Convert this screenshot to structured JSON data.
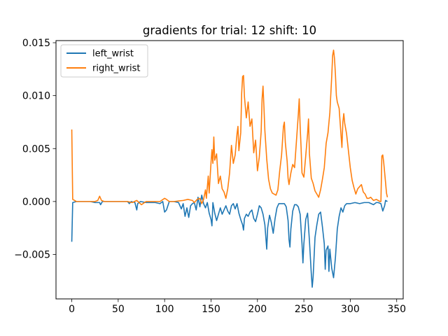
{
  "chart_data": {
    "type": "line",
    "title": "gradients for trial: 12 shift: 10",
    "xlabel": "",
    "ylabel": "",
    "xlim": [
      -17,
      357
    ],
    "ylim": [
      -0.0092,
      0.0152
    ],
    "xticks": [
      0,
      50,
      100,
      150,
      200,
      250,
      300,
      350
    ],
    "yticks": [
      -0.005,
      0.0,
      0.005,
      0.01,
      0.015
    ],
    "ytick_labels": [
      "−0.005",
      "0.000",
      "0.005",
      "0.010",
      "0.015"
    ],
    "grid": false,
    "legend_position": "top-left",
    "series": [
      {
        "name": "left_wrist",
        "color": "#1f77b4",
        "points": [
          [
            0,
            -0.0038
          ],
          [
            1,
            -0.0001
          ],
          [
            5,
            0.0
          ],
          [
            20,
            0.0
          ],
          [
            25,
            -0.0001
          ],
          [
            30,
            -0.0001
          ],
          [
            31,
            -0.0003
          ],
          [
            33,
            0.0
          ],
          [
            40,
            0.0
          ],
          [
            50,
            0.0
          ],
          [
            60,
            0.0
          ],
          [
            62,
            -0.0002
          ],
          [
            64,
            0.0
          ],
          [
            68,
            -0.0001
          ],
          [
            70,
            -0.0008
          ],
          [
            71,
            -0.0002
          ],
          [
            74,
            0.0
          ],
          [
            80,
            -0.0001
          ],
          [
            90,
            -0.0001
          ],
          [
            95,
            -0.0002
          ],
          [
            98,
            0.0
          ],
          [
            100,
            -0.001
          ],
          [
            102,
            -0.0008
          ],
          [
            105,
            0.0
          ],
          [
            110,
            0.0
          ],
          [
            115,
            -0.0001
          ],
          [
            118,
            -0.0007
          ],
          [
            120,
            -0.0002
          ],
          [
            122,
            -0.0014
          ],
          [
            124,
            -0.0006
          ],
          [
            126,
            -0.0015
          ],
          [
            128,
            -0.0004
          ],
          [
            130,
            -0.0002
          ],
          [
            132,
            -0.0001
          ],
          [
            134,
            -0.0008
          ],
          [
            136,
            0.0004
          ],
          [
            138,
            -0.0005
          ],
          [
            140,
            0.0006
          ],
          [
            142,
            -0.0002
          ],
          [
            144,
            -0.0006
          ],
          [
            146,
            -0.0001
          ],
          [
            148,
            -0.0011
          ],
          [
            150,
            -0.0017
          ],
          [
            151,
            -0.0023
          ],
          [
            152,
            -0.0001
          ],
          [
            154,
            -0.0011
          ],
          [
            156,
            -0.0018
          ],
          [
            158,
            -0.0012
          ],
          [
            160,
            -0.0006
          ],
          [
            162,
            -0.0012
          ],
          [
            164,
            -0.0008
          ],
          [
            166,
            -0.0004
          ],
          [
            168,
            -0.0009
          ],
          [
            170,
            -0.0012
          ],
          [
            172,
            -0.0004
          ],
          [
            174,
            -0.0002
          ],
          [
            176,
            -0.0007
          ],
          [
            178,
            -0.0002
          ],
          [
            180,
            -0.0011
          ],
          [
            182,
            -0.0017
          ],
          [
            184,
            -0.0022
          ],
          [
            185,
            -0.0027
          ],
          [
            186,
            -0.0016
          ],
          [
            188,
            -0.0012
          ],
          [
            190,
            -0.0014
          ],
          [
            192,
            -0.001
          ],
          [
            194,
            -0.0008
          ],
          [
            196,
            -0.0016
          ],
          [
            198,
            -0.0019
          ],
          [
            200,
            -0.0012
          ],
          [
            202,
            -0.0004
          ],
          [
            204,
            -0.0006
          ],
          [
            206,
            -0.0012
          ],
          [
            208,
            -0.0022
          ],
          [
            210,
            -0.0045
          ],
          [
            211,
            -0.0025
          ],
          [
            213,
            -0.0013
          ],
          [
            215,
            -0.002
          ],
          [
            217,
            -0.003
          ],
          [
            219,
            -0.0016
          ],
          [
            221,
            -0.0006
          ],
          [
            223,
            -0.0002
          ],
          [
            226,
            -0.0002
          ],
          [
            229,
            -0.0002
          ],
          [
            231,
            -0.0005
          ],
          [
            233,
            -0.0018
          ],
          [
            234,
            -0.0036
          ],
          [
            235,
            -0.0043
          ],
          [
            236,
            -0.0026
          ],
          [
            238,
            -0.0009
          ],
          [
            240,
            -0.0003
          ],
          [
            242,
            -0.0003
          ],
          [
            244,
            -0.0005
          ],
          [
            246,
            -0.0012
          ],
          [
            248,
            -0.004
          ],
          [
            249,
            -0.0058
          ],
          [
            250,
            -0.004
          ],
          [
            252,
            -0.0017
          ],
          [
            254,
            -0.0011
          ],
          [
            256,
            -0.0037
          ],
          [
            258,
            -0.0068
          ],
          [
            259,
            -0.0081
          ],
          [
            260,
            -0.0071
          ],
          [
            262,
            -0.0034
          ],
          [
            264,
            -0.0022
          ],
          [
            266,
            -0.0012
          ],
          [
            268,
            -0.001
          ],
          [
            270,
            -0.0024
          ],
          [
            272,
            -0.004
          ],
          [
            273,
            -0.0064
          ],
          [
            274,
            -0.0046
          ],
          [
            276,
            -0.0042
          ],
          [
            277,
            -0.0066
          ],
          [
            278,
            -0.0045
          ],
          [
            280,
            -0.0063
          ],
          [
            282,
            -0.0072
          ],
          [
            284,
            -0.0053
          ],
          [
            286,
            -0.0026
          ],
          [
            288,
            -0.0014
          ],
          [
            290,
            -0.0006
          ],
          [
            292,
            -0.001
          ],
          [
            294,
            -0.0004
          ],
          [
            296,
            -0.0002
          ],
          [
            300,
            -0.0002
          ],
          [
            305,
            -0.0001
          ],
          [
            310,
            -0.0002
          ],
          [
            315,
            -0.0001
          ],
          [
            320,
            -0.0001
          ],
          [
            325,
            -0.0003
          ],
          [
            328,
            -0.0001
          ],
          [
            330,
            -0.0001
          ],
          [
            333,
            -0.0002
          ],
          [
            335,
            -0.0009
          ],
          [
            337,
            -0.0004
          ],
          [
            338,
            0.0001
          ],
          [
            340,
            0.0
          ]
        ]
      },
      {
        "name": "right_wrist",
        "color": "#ff7f0e",
        "points": [
          [
            0,
            0.0068
          ],
          [
            1,
            0.0002
          ],
          [
            5,
            0.0
          ],
          [
            20,
            0.0
          ],
          [
            25,
            0.0
          ],
          [
            28,
            0.0001
          ],
          [
            30,
            0.0005
          ],
          [
            32,
            0.0001
          ],
          [
            35,
            0.0
          ],
          [
            50,
            0.0
          ],
          [
            60,
            0.0
          ],
          [
            65,
            -0.0001
          ],
          [
            70,
            0.0001
          ],
          [
            75,
            -0.0003
          ],
          [
            80,
            0.0
          ],
          [
            90,
            0.0
          ],
          [
            95,
            0.0
          ],
          [
            100,
            0.0003
          ],
          [
            102,
            0.0002
          ],
          [
            105,
            0.0
          ],
          [
            110,
            0.0
          ],
          [
            120,
            0.0001
          ],
          [
            125,
            0.0002
          ],
          [
            130,
            0.0001
          ],
          [
            132,
            -0.0001
          ],
          [
            135,
            0.0002
          ],
          [
            138,
            0.0003
          ],
          [
            140,
            -0.0002
          ],
          [
            142,
            0.0002
          ],
          [
            144,
            0.0011
          ],
          [
            145,
            0.0003
          ],
          [
            147,
            0.0024
          ],
          [
            148,
            0.0008
          ],
          [
            150,
            0.0037
          ],
          [
            151,
            0.0049
          ],
          [
            152,
            0.0036
          ],
          [
            153,
            0.0061
          ],
          [
            154,
            0.0039
          ],
          [
            156,
            0.0045
          ],
          [
            158,
            0.0017
          ],
          [
            160,
            0.0024
          ],
          [
            162,
            0.0012
          ],
          [
            164,
            0.0009
          ],
          [
            166,
            0.0003
          ],
          [
            168,
            0.0012
          ],
          [
            170,
            0.0027
          ],
          [
            172,
            0.0053
          ],
          [
            174,
            0.0036
          ],
          [
            176,
            0.0044
          ],
          [
            178,
            0.0064
          ],
          [
            179,
            0.0071
          ],
          [
            180,
            0.0048
          ],
          [
            182,
            0.0065
          ],
          [
            183,
            0.0102
          ],
          [
            184,
            0.0118
          ],
          [
            185,
            0.0119
          ],
          [
            186,
            0.0099
          ],
          [
            188,
            0.0079
          ],
          [
            190,
            0.0094
          ],
          [
            192,
            0.0071
          ],
          [
            194,
            0.0078
          ],
          [
            196,
            0.0046
          ],
          [
            198,
            0.0058
          ],
          [
            200,
            0.0029
          ],
          [
            202,
            0.0042
          ],
          [
            204,
            0.0066
          ],
          [
            205,
            0.0097
          ],
          [
            206,
            0.0109
          ],
          [
            207,
            0.0089
          ],
          [
            208,
            0.0067
          ],
          [
            210,
            0.004
          ],
          [
            212,
            0.0021
          ],
          [
            214,
            0.0012
          ],
          [
            216,
            0.0008
          ],
          [
            218,
            0.0007
          ],
          [
            220,
            0.0006
          ],
          [
            222,
            0.0011
          ],
          [
            224,
            0.0029
          ],
          [
            226,
            0.0044
          ],
          [
            228,
            0.0071
          ],
          [
            229,
            0.0075
          ],
          [
            230,
            0.0056
          ],
          [
            232,
            0.0038
          ],
          [
            233,
            0.0022
          ],
          [
            234,
            0.0016
          ],
          [
            236,
            0.0027
          ],
          [
            238,
            0.0035
          ],
          [
            240,
            0.0032
          ],
          [
            242,
            0.0057
          ],
          [
            244,
            0.0082
          ],
          [
            245,
            0.0097
          ],
          [
            246,
            0.0071
          ],
          [
            247,
            0.0051
          ],
          [
            248,
            0.0027
          ],
          [
            250,
            0.0023
          ],
          [
            252,
            0.0043
          ],
          [
            254,
            0.0064
          ],
          [
            255,
            0.0078
          ],
          [
            256,
            0.0045
          ],
          [
            258,
            0.0022
          ],
          [
            260,
            0.0017
          ],
          [
            262,
            0.001
          ],
          [
            264,
            0.0007
          ],
          [
            266,
            0.0004
          ],
          [
            268,
            0.0011
          ],
          [
            270,
            0.0021
          ],
          [
            272,
            0.0032
          ],
          [
            274,
            0.0055
          ],
          [
            276,
            0.0065
          ],
          [
            278,
            0.0084
          ],
          [
            280,
            0.0118
          ],
          [
            281,
            0.0138
          ],
          [
            282,
            0.0143
          ],
          [
            283,
            0.0135
          ],
          [
            284,
            0.012
          ],
          [
            285,
            0.01
          ],
          [
            286,
            0.0094
          ],
          [
            288,
            0.0088
          ],
          [
            290,
            0.0063
          ],
          [
            291,
            0.0051
          ],
          [
            292,
            0.0075
          ],
          [
            293,
            0.0083
          ],
          [
            294,
            0.0074
          ],
          [
            296,
            0.0064
          ],
          [
            298,
            0.0048
          ],
          [
            300,
            0.0032
          ],
          [
            302,
            0.002
          ],
          [
            304,
            0.0013
          ],
          [
            306,
            0.0007
          ],
          [
            308,
            0.0012
          ],
          [
            310,
            0.0014
          ],
          [
            312,
            0.0016
          ],
          [
            314,
            0.0009
          ],
          [
            316,
            0.0007
          ],
          [
            318,
            0.0003
          ],
          [
            320,
            0.0003
          ],
          [
            322,
            0.0004
          ],
          [
            325,
            0.0001
          ],
          [
            328,
            0.0002
          ],
          [
            330,
            0.0001
          ],
          [
            332,
            0.0
          ],
          [
            333,
            0.0
          ],
          [
            334,
            0.0043
          ],
          [
            335,
            0.0044
          ],
          [
            336,
            0.0037
          ],
          [
            338,
            0.0018
          ],
          [
            339,
            0.0008
          ],
          [
            340,
            0.0004
          ]
        ]
      }
    ]
  }
}
